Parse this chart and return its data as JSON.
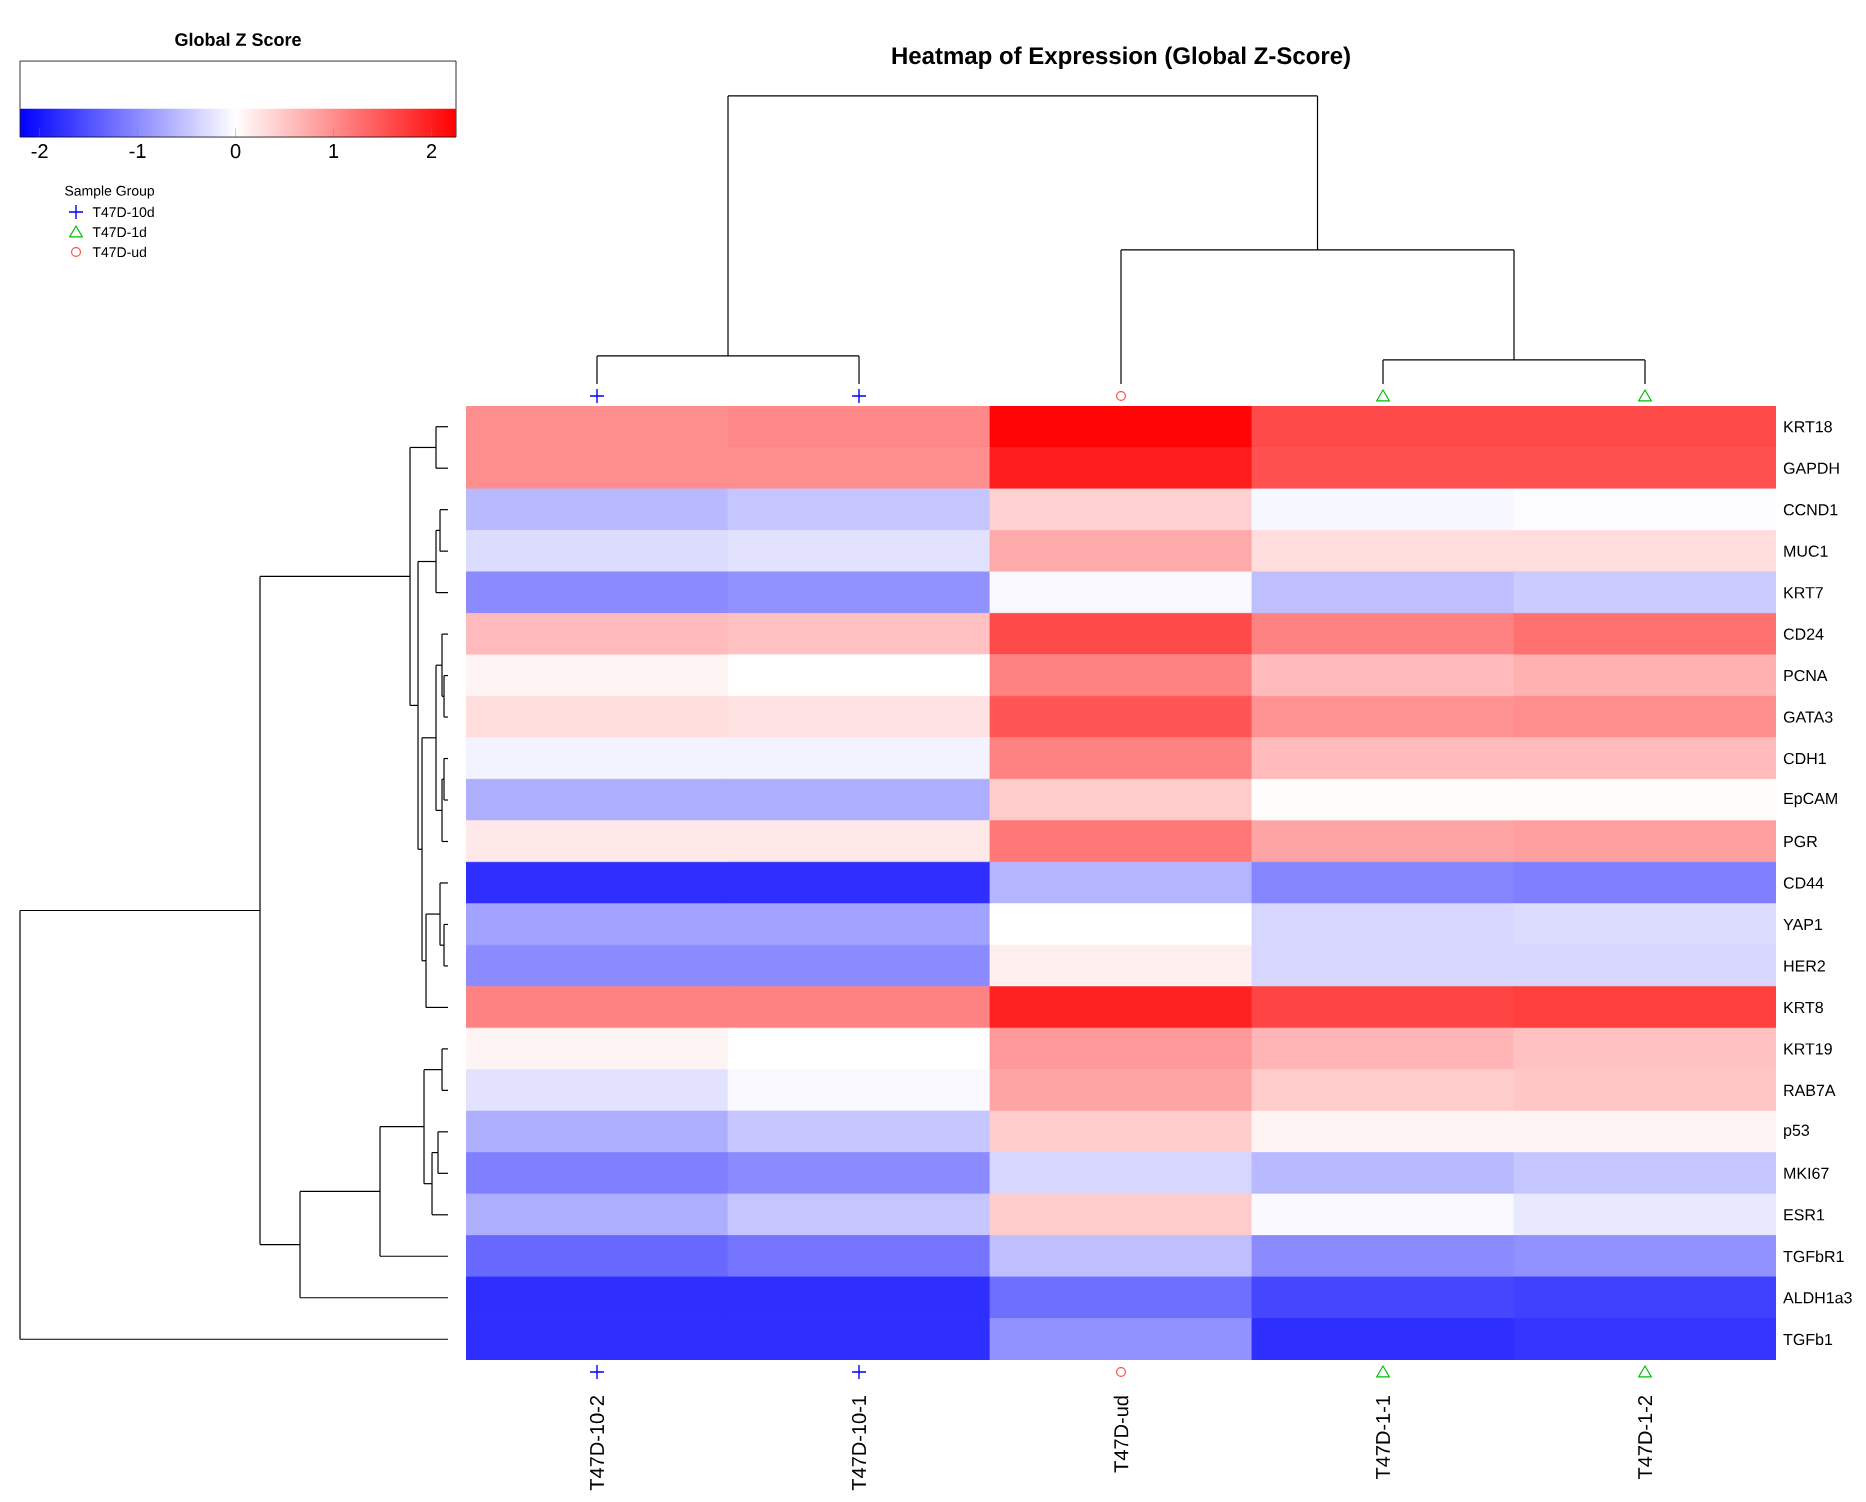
{
  "chart_data": {
    "type": "heatmap",
    "title": "Heatmap of Expression (Global Z-Score)",
    "clabel": "Global Z Score",
    "categories": [
      "T47D-10-2",
      "T47D-10-1",
      "T47D-ud",
      "T47D-1-1",
      "T47D-1-2"
    ],
    "y_categories": [
      "KRT18",
      "GAPDH",
      "CCND1",
      "MUC1",
      "KRT7",
      "CD24",
      "PCNA",
      "GATA3",
      "CDH1",
      "EpCAM",
      "PGR",
      "CD44",
      "YAP1",
      "HER2",
      "KRT8",
      "KRT19",
      "RAB7A",
      "p53",
      "MKI67",
      "ESR1",
      "TGFbR1",
      "ALDH1a3",
      "TGFb1"
    ],
    "cells": [
      [
        1.0,
        1.05,
        2.2,
        1.6,
        1.6
      ],
      [
        1.0,
        1.0,
        2.0,
        1.55,
        1.55
      ],
      [
        -0.6,
        -0.5,
        0.4,
        -0.07,
        -0.03
      ],
      [
        -0.3,
        -0.25,
        0.75,
        0.3,
        0.3
      ],
      [
        -1.0,
        -0.95,
        -0.05,
        -0.55,
        -0.45
      ],
      [
        0.6,
        0.55,
        1.6,
        1.1,
        1.25
      ],
      [
        0.1,
        0.0,
        1.1,
        0.6,
        0.7
      ],
      [
        0.3,
        0.25,
        1.5,
        0.95,
        1.0
      ],
      [
        -0.1,
        -0.1,
        1.1,
        0.6,
        0.6
      ],
      [
        -0.7,
        -0.7,
        0.45,
        0.03,
        0.03
      ],
      [
        0.2,
        0.2,
        1.2,
        0.8,
        0.85
      ],
      [
        -1.8,
        -1.8,
        -0.65,
        -1.05,
        -1.1
      ],
      [
        -0.8,
        -0.8,
        0.0,
        -0.35,
        -0.3
      ],
      [
        -1.0,
        -1.0,
        0.15,
        -0.35,
        -0.35
      ],
      [
        1.1,
        1.1,
        1.95,
        1.65,
        1.7
      ],
      [
        0.1,
        0.0,
        0.9,
        0.65,
        0.55
      ],
      [
        -0.25,
        -0.05,
        0.8,
        0.45,
        0.5
      ],
      [
        -0.7,
        -0.5,
        0.45,
        0.1,
        0.1
      ],
      [
        -1.1,
        -1.0,
        -0.35,
        -0.6,
        -0.5
      ],
      [
        -0.7,
        -0.5,
        0.45,
        -0.05,
        -0.2
      ],
      [
        -1.3,
        -1.2,
        -0.55,
        -1.0,
        -0.95
      ],
      [
        -1.8,
        -1.8,
        -1.25,
        -1.6,
        -1.65
      ],
      [
        -1.8,
        -1.8,
        -0.95,
        -1.8,
        -1.75
      ]
    ],
    "clim": [
      -2.2,
      2.25
    ],
    "cticks": [
      -2,
      -1,
      0,
      1,
      2
    ],
    "annotations": [
      "Sample Group",
      "T47D-10d",
      "T47D-1d",
      "T47D-ud"
    ]
  }
}
